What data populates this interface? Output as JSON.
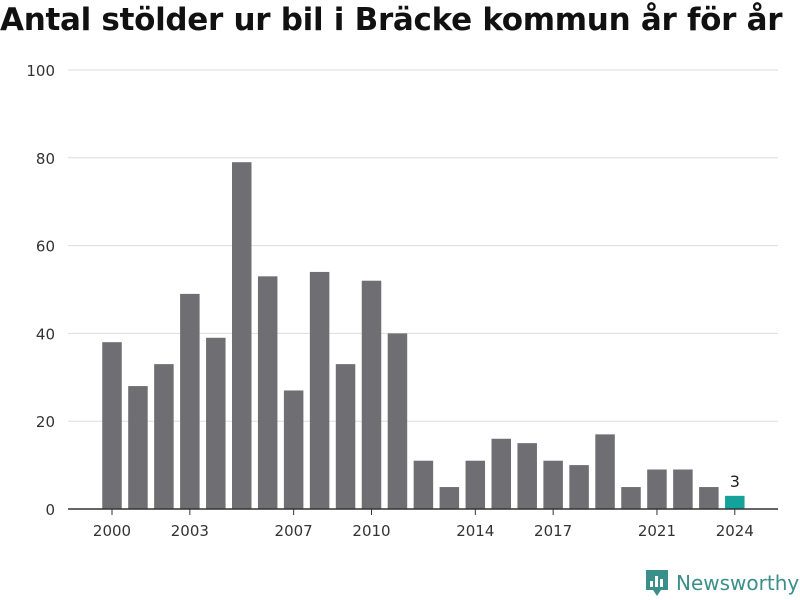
{
  "chart_data": {
    "type": "bar",
    "title": "Antal stölder ur bil i Bräcke kommun år för år",
    "categories": [
      "2000",
      "2001",
      "2002",
      "2003",
      "2004",
      "2005",
      "2006",
      "2007",
      "2008",
      "2009",
      "2010",
      "2011",
      "2012",
      "2013",
      "2014",
      "2015",
      "2016",
      "2017",
      "2018",
      "2019",
      "2020",
      "2021",
      "2022",
      "2023",
      "2024"
    ],
    "values": [
      38,
      28,
      33,
      49,
      39,
      79,
      53,
      27,
      54,
      33,
      52,
      40,
      11,
      5,
      11,
      16,
      15,
      11,
      10,
      17,
      5,
      9,
      9,
      5,
      3
    ],
    "x_tick_labels": [
      "2000",
      "2003",
      "2007",
      "2010",
      "2014",
      "2017",
      "2021",
      "2024"
    ],
    "y_ticks": [
      0,
      20,
      40,
      60,
      80,
      100
    ],
    "ylim": [
      0,
      100
    ],
    "grid": true,
    "highlight": {
      "category": "2024",
      "label": "3"
    },
    "colors": {
      "bar": "#6f6e73",
      "highlight": "#13a39a",
      "grid": "#dddddd"
    }
  },
  "branding": {
    "logo_text": "Newsworthy",
    "logo_icon": "newsworthy-chart-icon"
  }
}
